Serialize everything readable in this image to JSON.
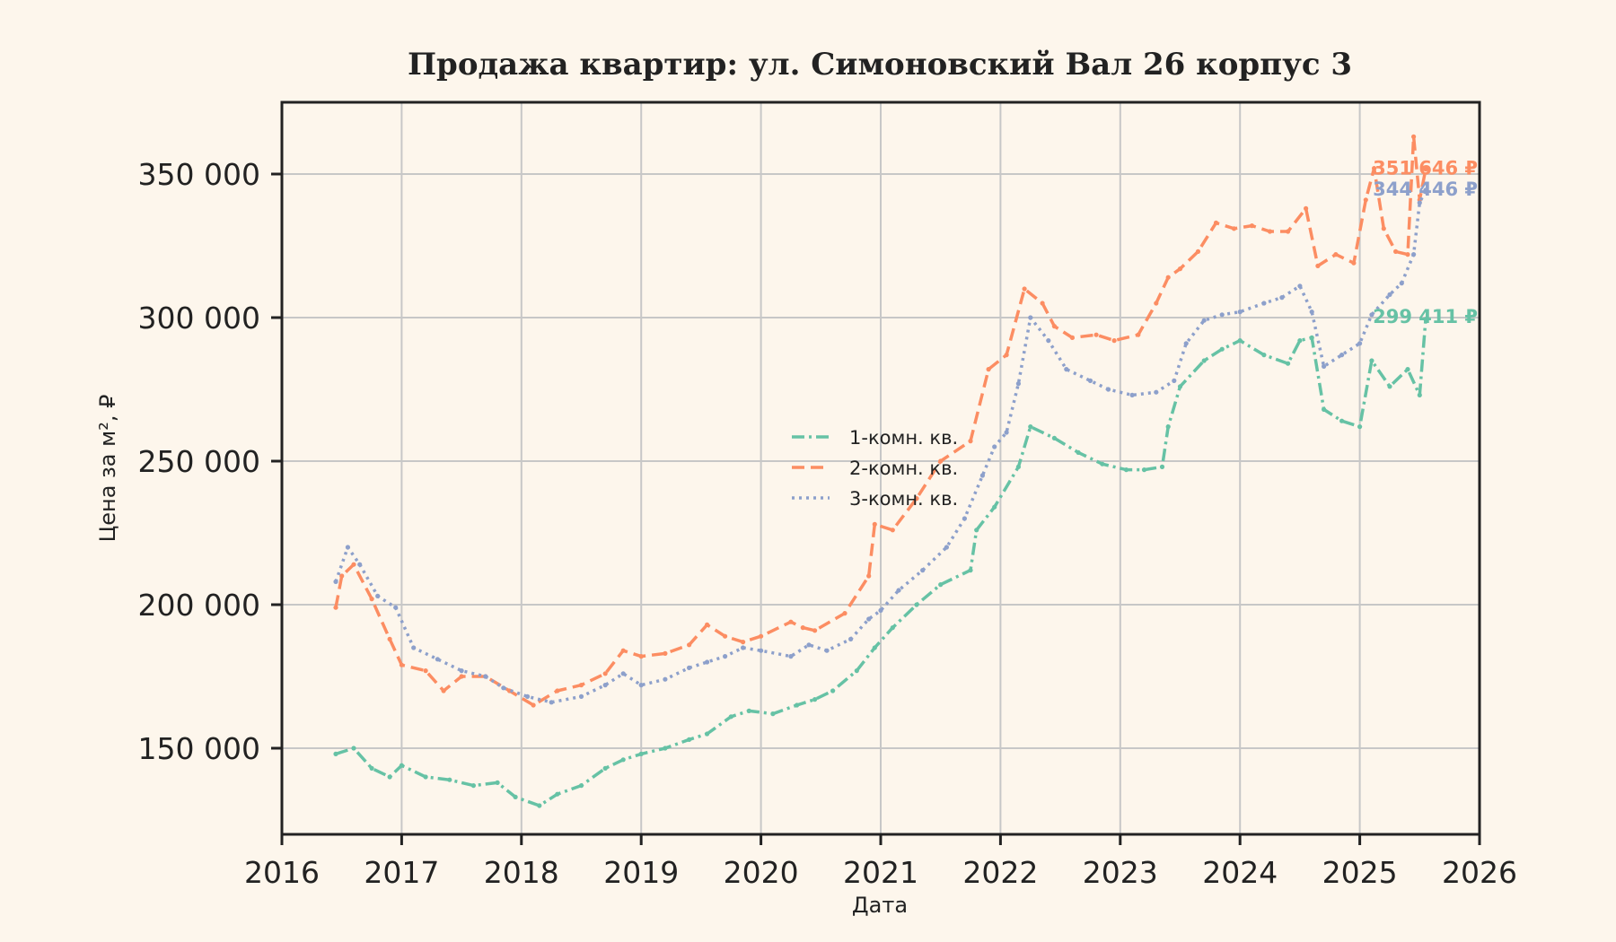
{
  "chart_data": {
    "type": "line",
    "title": "Продажа квартир: ул. Симоновский Вал 26 корпус 3",
    "xlabel": "Дата",
    "ylabel": "Цена за м², ₽",
    "xlim": [
      2016,
      2026
    ],
    "ylim": [
      120000,
      375000
    ],
    "x_ticks": [
      "2016",
      "2017",
      "2018",
      "2019",
      "2020",
      "2021",
      "2022",
      "2023",
      "2024",
      "2025",
      "2026"
    ],
    "y_ticks": [
      {
        "value": 150000,
        "label": "150 000"
      },
      {
        "value": 200000,
        "label": "200 000"
      },
      {
        "value": 250000,
        "label": "250 000"
      },
      {
        "value": 300000,
        "label": "300 000"
      },
      {
        "value": 350000,
        "label": "350 000"
      }
    ],
    "grid": true,
    "legend_position": "center",
    "series": [
      {
        "name": "1-комн. кв.",
        "color": "#66c2a5",
        "style": "dashdot",
        "end_label": "299 411 ₽",
        "x": [
          2016.45,
          2016.6,
          2016.75,
          2016.9,
          2017.0,
          2017.2,
          2017.4,
          2017.6,
          2017.8,
          2017.95,
          2018.15,
          2018.3,
          2018.5,
          2018.7,
          2018.85,
          2019.0,
          2019.2,
          2019.4,
          2019.55,
          2019.75,
          2019.9,
          2020.1,
          2020.3,
          2020.45,
          2020.6,
          2020.8,
          2020.95,
          2021.1,
          2021.3,
          2021.5,
          2021.75,
          2021.8,
          2021.95,
          2022.15,
          2022.25,
          2022.45,
          2022.65,
          2022.85,
          2023.05,
          2023.2,
          2023.35,
          2023.4,
          2023.5,
          2023.7,
          2023.85,
          2024.0,
          2024.2,
          2024.4,
          2024.5,
          2024.6,
          2024.7,
          2024.85,
          2025.0,
          2025.1,
          2025.25,
          2025.4,
          2025.5,
          2025.55
        ],
        "y": [
          148000,
          150000,
          143000,
          140000,
          144000,
          140000,
          139000,
          137000,
          138000,
          133000,
          130000,
          134000,
          137000,
          143000,
          146000,
          148000,
          150000,
          153000,
          155000,
          161000,
          163000,
          162000,
          165000,
          167000,
          170000,
          177000,
          185000,
          192000,
          200000,
          207000,
          212000,
          226000,
          234000,
          248000,
          262000,
          258000,
          253000,
          249000,
          247000,
          247000,
          248000,
          262000,
          276000,
          285000,
          289000,
          292000,
          287000,
          284000,
          292000,
          293000,
          268000,
          264000,
          262000,
          285000,
          276000,
          282000,
          273000,
          299411
        ]
      },
      {
        "name": "2-комн. кв.",
        "color": "#fc8d62",
        "style": "dashed",
        "end_label": "351 646 ₽",
        "x": [
          2016.45,
          2016.5,
          2016.6,
          2016.75,
          2016.9,
          2017.0,
          2017.2,
          2017.35,
          2017.5,
          2017.7,
          2017.9,
          2018.1,
          2018.3,
          2018.5,
          2018.7,
          2018.85,
          2019.0,
          2019.2,
          2019.4,
          2019.55,
          2019.7,
          2019.85,
          2020.0,
          2020.25,
          2020.35,
          2020.45,
          2020.7,
          2020.9,
          2020.95,
          2021.1,
          2021.3,
          2021.5,
          2021.75,
          2021.9,
          2022.05,
          2022.2,
          2022.35,
          2022.45,
          2022.6,
          2022.8,
          2022.95,
          2023.15,
          2023.3,
          2023.4,
          2023.5,
          2023.65,
          2023.8,
          2023.95,
          2024.1,
          2024.25,
          2024.4,
          2024.55,
          2024.65,
          2024.8,
          2024.95,
          2025.05,
          2025.12,
          2025.2,
          2025.3,
          2025.4,
          2025.45,
          2025.5,
          2025.55
        ],
        "y": [
          199000,
          210000,
          214000,
          202000,
          188000,
          179000,
          177000,
          170000,
          175000,
          175000,
          170000,
          165000,
          170000,
          172000,
          176000,
          184000,
          182000,
          183000,
          186000,
          193000,
          189000,
          187000,
          189000,
          194000,
          192000,
          191000,
          197000,
          210000,
          228000,
          226000,
          237000,
          250000,
          257000,
          282000,
          287000,
          310000,
          305000,
          297000,
          293000,
          294000,
          292000,
          294000,
          305000,
          314000,
          317000,
          323000,
          333000,
          331000,
          332000,
          330000,
          330000,
          338000,
          318000,
          322000,
          319000,
          341000,
          352000,
          331000,
          323000,
          322000,
          363000,
          341000,
          351646
        ]
      },
      {
        "name": "3-комн. кв.",
        "color": "#8da0cb",
        "style": "dotted",
        "end_label": "344 446 ₽",
        "x": [
          2016.45,
          2016.55,
          2016.65,
          2016.8,
          2016.95,
          2017.1,
          2017.3,
          2017.5,
          2017.7,
          2017.85,
          2018.05,
          2018.25,
          2018.5,
          2018.7,
          2018.85,
          2019.0,
          2019.2,
          2019.4,
          2019.55,
          2019.7,
          2019.85,
          2020.0,
          2020.25,
          2020.4,
          2020.55,
          2020.75,
          2020.9,
          2021.0,
          2021.15,
          2021.35,
          2021.55,
          2021.7,
          2021.85,
          2021.95,
          2022.05,
          2022.15,
          2022.25,
          2022.4,
          2022.55,
          2022.75,
          2022.9,
          2023.1,
          2023.3,
          2023.45,
          2023.55,
          2023.7,
          2023.85,
          2024.0,
          2024.2,
          2024.35,
          2024.5,
          2024.6,
          2024.7,
          2024.85,
          2025.0,
          2025.1,
          2025.25,
          2025.35,
          2025.45,
          2025.5,
          2025.55
        ],
        "y": [
          208000,
          220000,
          214000,
          203000,
          199000,
          185000,
          181000,
          177000,
          175000,
          171000,
          168000,
          166000,
          168000,
          172000,
          176000,
          172000,
          174000,
          178000,
          180000,
          182000,
          185000,
          184000,
          182000,
          186000,
          184000,
          188000,
          195000,
          198000,
          205000,
          212000,
          220000,
          230000,
          245000,
          255000,
          260000,
          277000,
          300000,
          292000,
          282000,
          278000,
          275000,
          273000,
          274000,
          278000,
          291000,
          299000,
          301000,
          302000,
          305000,
          307000,
          311000,
          302000,
          283000,
          287000,
          291000,
          301000,
          308000,
          312000,
          322000,
          340000,
          344446
        ]
      }
    ]
  }
}
